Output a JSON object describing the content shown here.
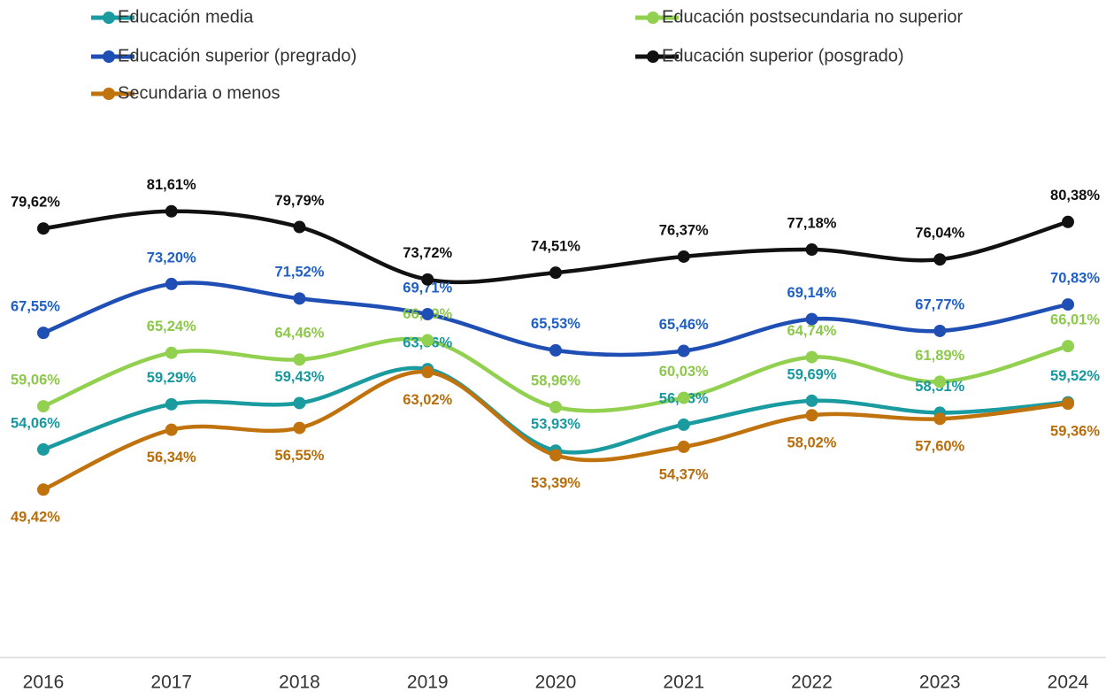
{
  "chart_data": {
    "type": "line",
    "categories": [
      "2016",
      "2017",
      "2018",
      "2019",
      "2020",
      "2021",
      "2022",
      "2023",
      "2024"
    ],
    "ylim": [
      30,
      85
    ],
    "series": [
      {
        "name": "Educación media",
        "color": "#1a9ba0",
        "label_color": "#16999e",
        "values": [
          54.06,
          59.29,
          59.43,
          63.36,
          53.93,
          56.93,
          59.69,
          58.31,
          59.52
        ],
        "value_labels": [
          "54,06%",
          "59,29%",
          "59,43%",
          "63,36%",
          "53,93%",
          "56,93%",
          "59,69%",
          "58,31%",
          "59,52%"
        ]
      },
      {
        "name": "Educación postsecundaria no superior",
        "color": "#92d050",
        "label_color": "#8cc84a",
        "values": [
          59.06,
          65.24,
          64.46,
          66.69,
          58.96,
          60.03,
          64.74,
          61.89,
          66.01
        ],
        "value_labels": [
          "59,06%",
          "65,24%",
          "64,46%",
          "66,69%",
          "58,96%",
          "60,03%",
          "64,74%",
          "61,89%",
          "66,01%"
        ]
      },
      {
        "name": "Educación superior (pregrado)",
        "color": "#1f4eb4",
        "label_color": "#1f5fc8",
        "values": [
          67.55,
          73.2,
          71.52,
          69.71,
          65.53,
          65.46,
          69.14,
          67.77,
          70.83
        ],
        "value_labels": [
          "67,55%",
          "73,20%",
          "71,52%",
          "69,71%",
          "65,53%",
          "65,46%",
          "69,14%",
          "67,77%",
          "70,83%"
        ]
      },
      {
        "name": "Educación superior (posgrado)",
        "color": "#111111",
        "label_color": "#111111",
        "values": [
          79.62,
          81.61,
          79.79,
          73.72,
          74.51,
          76.37,
          77.18,
          76.04,
          80.38
        ],
        "value_labels": [
          "79,62%",
          "81,61%",
          "79,79%",
          "73,72%",
          "74,51%",
          "76,37%",
          "77,18%",
          "76,04%",
          "80,38%"
        ]
      },
      {
        "name": "Secundaria o menos",
        "color": "#c0720c",
        "label_color": "#b86d0a",
        "values": [
          49.42,
          56.34,
          56.55,
          63.02,
          53.39,
          54.37,
          58.02,
          57.6,
          59.36
        ],
        "value_labels": [
          "49,42%",
          "56,34%",
          "56,55%",
          "63,02%",
          "53,39%",
          "54,37%",
          "58,02%",
          "57,60%",
          "59,36%"
        ]
      }
    ]
  }
}
